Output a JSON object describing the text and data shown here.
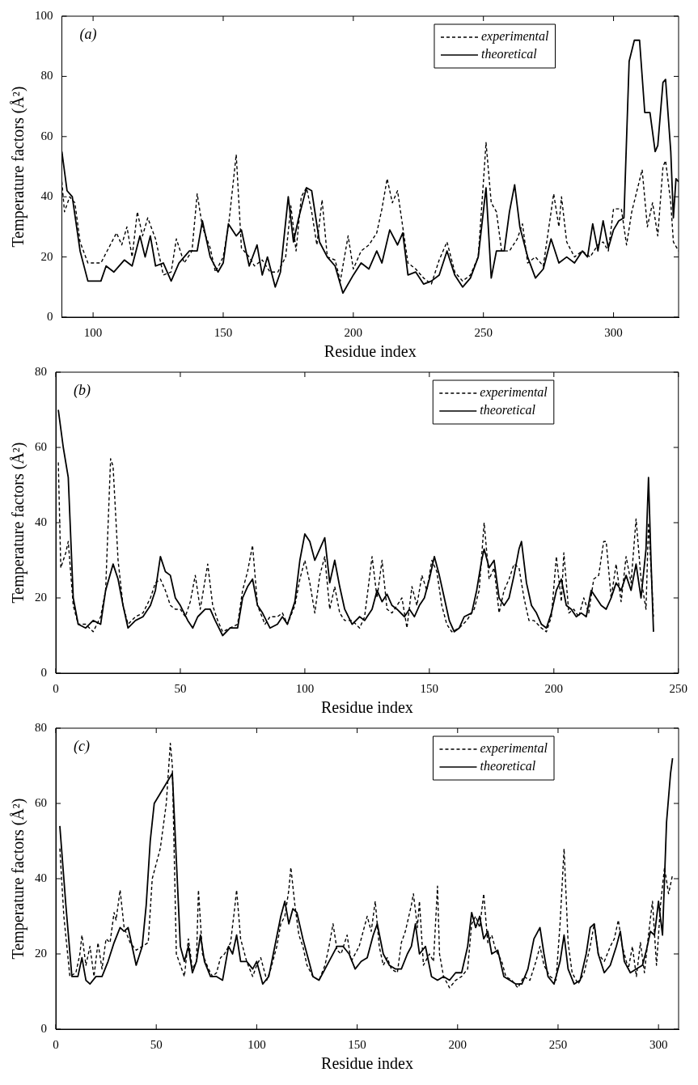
{
  "chart_data": [
    {
      "type": "line",
      "annotations": [
        "(a)"
      ],
      "xlabel": "Residue index",
      "ylabel": "Temperature factors (Å²)",
      "xlim": [
        88,
        325
      ],
      "xticks": [
        100,
        150,
        200,
        250,
        300
      ],
      "ylim": [
        0,
        100
      ],
      "yticks": [
        0,
        20,
        40,
        60,
        80,
        100
      ],
      "grid": false,
      "legend": "top right",
      "marker": "none",
      "series": [
        {
          "name": "experimental",
          "color": "#000000",
          "line_style": "dashed",
          "x": [
            88,
            89,
            91,
            93,
            95,
            98,
            103,
            106,
            109,
            111,
            113,
            115,
            117,
            119,
            121,
            124,
            127,
            130,
            132,
            135,
            138,
            140,
            142,
            145,
            147,
            150,
            152,
            155,
            157,
            160,
            162,
            165,
            168,
            171,
            174,
            176,
            178,
            180,
            182,
            184,
            186,
            188,
            190,
            193,
            195,
            198,
            200,
            203,
            206,
            209,
            211,
            213,
            215,
            217,
            219,
            221,
            224,
            227,
            230,
            233,
            236,
            239,
            242,
            245,
            248,
            250,
            251,
            253,
            255,
            257,
            260,
            263,
            265,
            267,
            270,
            273,
            276,
            277,
            279,
            280,
            282,
            285,
            288,
            291,
            294,
            296,
            298,
            300,
            303,
            305,
            307,
            309,
            311,
            313,
            315,
            317,
            319,
            320,
            322,
            323,
            325
          ],
          "values": [
            45,
            35,
            40,
            38,
            25,
            18,
            18,
            23,
            28,
            24,
            30,
            20,
            35,
            27,
            33,
            26,
            14,
            15,
            26,
            18,
            22,
            41,
            30,
            23,
            15,
            20,
            30,
            54,
            23,
            20,
            17,
            19,
            15,
            15,
            20,
            37,
            22,
            40,
            43,
            35,
            24,
            39,
            20,
            19,
            12,
            27,
            16,
            22,
            24,
            28,
            36,
            46,
            38,
            42,
            30,
            18,
            16,
            13,
            11,
            19,
            25,
            15,
            12,
            14,
            20,
            45,
            58,
            38,
            35,
            22,
            22,
            26,
            31,
            18,
            20,
            17,
            35,
            41,
            30,
            40,
            25,
            20,
            22,
            20,
            24,
            25,
            22,
            36,
            36,
            24,
            35,
            42,
            49,
            30,
            38,
            27,
            50,
            52,
            38,
            25,
            22
          ]
        },
        {
          "name": "theoretical",
          "color": "#000000",
          "line_style": "solid",
          "x": [
            88,
            90,
            92,
            95,
            98,
            103,
            105,
            108,
            112,
            115,
            118,
            120,
            122,
            124,
            127,
            130,
            133,
            137,
            140,
            142,
            145,
            148,
            150,
            152,
            155,
            157,
            160,
            163,
            165,
            167,
            170,
            172,
            175,
            177,
            179,
            182,
            184,
            187,
            190,
            193,
            196,
            200,
            203,
            206,
            209,
            211,
            214,
            217,
            219,
            221,
            224,
            227,
            230,
            233,
            236,
            239,
            242,
            245,
            248,
            251,
            253,
            255,
            258,
            260,
            262,
            264,
            267,
            270,
            273,
            276,
            279,
            282,
            285,
            288,
            290,
            292,
            294,
            296,
            298,
            300,
            302,
            304,
            306,
            308,
            310,
            312,
            314,
            316,
            317,
            319,
            320,
            322,
            323,
            324,
            325
          ],
          "values": [
            55,
            42,
            40,
            22,
            12,
            12,
            17,
            15,
            19,
            17,
            27,
            20,
            27,
            17,
            18,
            12,
            18,
            22,
            22,
            32,
            20,
            15,
            18,
            31,
            27,
            29,
            17,
            24,
            14,
            20,
            10,
            15,
            40,
            25,
            33,
            43,
            42,
            25,
            20,
            17,
            8,
            14,
            18,
            16,
            22,
            18,
            29,
            24,
            28,
            14,
            15,
            11,
            12,
            14,
            22,
            14,
            10,
            13,
            20,
            43,
            13,
            22,
            22,
            35,
            44,
            30,
            20,
            13,
            16,
            26,
            18,
            20,
            18,
            22,
            20,
            31,
            22,
            32,
            23,
            29,
            32,
            33,
            85,
            92,
            92,
            68,
            68,
            55,
            57,
            78,
            79,
            55,
            33,
            46,
            45
          ]
        }
      ]
    },
    {
      "type": "line",
      "annotations": [
        "(b)"
      ],
      "xlabel": "Residue index",
      "ylabel": "Temperature factors (Å²)",
      "xlim": [
        0,
        250
      ],
      "xticks": [
        0,
        50,
        100,
        150,
        200,
        250
      ],
      "ylim": [
        0,
        80
      ],
      "yticks": [
        0,
        20,
        40,
        60,
        80
      ],
      "grid": false,
      "legend": "top right",
      "marker": "none",
      "series": [
        {
          "name": "experimental",
          "color": "#000000",
          "line_style": "dashed",
          "x": [
            1,
            2,
            4,
            5,
            7,
            9,
            12,
            15,
            18,
            20,
            22,
            23,
            25,
            27,
            29,
            32,
            35,
            38,
            40,
            42,
            44,
            46,
            48,
            50,
            52,
            54,
            56,
            58,
            61,
            63,
            65,
            67,
            70,
            73,
            75,
            77,
            79,
            81,
            84,
            86,
            89,
            91,
            93,
            96,
            98,
            100,
            102,
            104,
            106,
            108,
            110,
            112,
            114,
            116,
            119,
            122,
            124,
            127,
            129,
            131,
            133,
            135,
            137,
            139,
            141,
            143,
            145,
            147,
            149,
            151,
            153,
            155,
            157,
            159,
            162,
            165,
            168,
            170,
            172,
            174,
            176,
            178,
            180,
            182,
            184,
            186,
            188,
            190,
            192,
            195,
            197,
            199,
            201,
            203,
            204,
            206,
            208,
            210,
            212,
            214,
            216,
            218,
            220,
            221,
            223,
            225,
            227,
            229,
            231,
            233,
            235,
            237,
            238,
            239,
            240
          ],
          "values": [
            56,
            28,
            32,
            35,
            18,
            13,
            13,
            11,
            15,
            22,
            57,
            55,
            30,
            18,
            13,
            15,
            16,
            20,
            24,
            25,
            22,
            18,
            17,
            17,
            15,
            19,
            26,
            17,
            29,
            18,
            14,
            11,
            12,
            13,
            22,
            27,
            34,
            18,
            13,
            15,
            15,
            16,
            13,
            18,
            25,
            30,
            24,
            16,
            26,
            31,
            17,
            23,
            16,
            14,
            14,
            12,
            15,
            31,
            20,
            30,
            17,
            16,
            18,
            20,
            12,
            23,
            18,
            26,
            22,
            30,
            27,
            18,
            13,
            11,
            12,
            14,
            17,
            22,
            40,
            25,
            28,
            16,
            22,
            25,
            29,
            28,
            20,
            14,
            14,
            12,
            11,
            15,
            31,
            19,
            32,
            16,
            17,
            15,
            20,
            16,
            25,
            26,
            35,
            35,
            20,
            29,
            19,
            31,
            24,
            41,
            25,
            17,
            40,
            28,
            15
          ]
        },
        {
          "name": "theoretical",
          "color": "#000000",
          "line_style": "solid",
          "x": [
            1,
            3,
            5,
            7,
            9,
            12,
            15,
            18,
            20,
            23,
            25,
            27,
            29,
            32,
            35,
            38,
            40,
            42,
            44,
            46,
            48,
            50,
            53,
            55,
            57,
            60,
            62,
            64,
            67,
            70,
            73,
            75,
            77,
            79,
            81,
            83,
            86,
            89,
            91,
            93,
            96,
            98,
            100,
            102,
            104,
            106,
            108,
            110,
            112,
            114,
            116,
            119,
            122,
            124,
            127,
            129,
            131,
            133,
            135,
            137,
            140,
            142,
            144,
            146,
            148,
            150,
            152,
            154,
            156,
            158,
            160,
            162,
            164,
            167,
            169,
            171,
            172,
            174,
            176,
            178,
            180,
            182,
            184,
            186,
            187,
            189,
            191,
            193,
            195,
            197,
            199,
            201,
            203,
            205,
            207,
            209,
            211,
            213,
            215,
            217,
            219,
            221,
            223,
            225,
            227,
            229,
            231,
            233,
            235,
            237,
            238,
            239,
            240
          ],
          "values": [
            70,
            60,
            52,
            20,
            13,
            12,
            14,
            13,
            22,
            29,
            25,
            18,
            12,
            14,
            15,
            18,
            22,
            31,
            27,
            26,
            20,
            18,
            14,
            12,
            15,
            17,
            17,
            14,
            10,
            12,
            12,
            20,
            23,
            25,
            18,
            16,
            12,
            13,
            15,
            13,
            19,
            30,
            37,
            35,
            30,
            33,
            36,
            24,
            30,
            23,
            17,
            13,
            15,
            14,
            17,
            22,
            19,
            21,
            18,
            17,
            15,
            17,
            15,
            18,
            20,
            25,
            31,
            26,
            20,
            14,
            11,
            12,
            15,
            16,
            22,
            30,
            33,
            28,
            30,
            20,
            18,
            20,
            26,
            33,
            35,
            24,
            18,
            16,
            13,
            12,
            16,
            22,
            25,
            18,
            17,
            15,
            16,
            15,
            22,
            20,
            18,
            17,
            20,
            24,
            22,
            26,
            22,
            29,
            20,
            33,
            52,
            30,
            11
          ]
        }
      ]
    },
    {
      "type": "line",
      "annotations": [
        "(c)"
      ],
      "xlabel": "Residue index",
      "ylabel": "Temperature factors (Å²)",
      "xlim": [
        0,
        310
      ],
      "xticks": [
        0,
        50,
        100,
        150,
        200,
        250,
        300
      ],
      "ylim": [
        0,
        80
      ],
      "yticks": [
        0,
        20,
        40,
        60,
        80
      ],
      "grid": false,
      "legend": "top right",
      "marker": "none",
      "series": [
        {
          "name": "experimental",
          "color": "#000000",
          "line_style": "dashed",
          "x": [
            2,
            4,
            7,
            10,
            12,
            13,
            15,
            17,
            19,
            21,
            23,
            25,
            27,
            29,
            30,
            32,
            34,
            37,
            40,
            43,
            46,
            48,
            52,
            55,
            57,
            58,
            60,
            62,
            64,
            66,
            68,
            70,
            71,
            73,
            76,
            78,
            80,
            82,
            84,
            87,
            89,
            90,
            92,
            95,
            98,
            100,
            102,
            105,
            107,
            110,
            112,
            114,
            116,
            117,
            119,
            121,
            123,
            125,
            128,
            131,
            134,
            136,
            138,
            140,
            142,
            145,
            147,
            149,
            151,
            153,
            155,
            157,
            159,
            161,
            163,
            165,
            167,
            170,
            172,
            174,
            177,
            178,
            180,
            181,
            183,
            186,
            188,
            190,
            191,
            193,
            196,
            199,
            202,
            205,
            207,
            209,
            211,
            213,
            215,
            217,
            219,
            222,
            224,
            227,
            230,
            233,
            236,
            239,
            241,
            243,
            246,
            249,
            251,
            253,
            255,
            257,
            260,
            263,
            266,
            268,
            270,
            273,
            276,
            278,
            280,
            282,
            285,
            287,
            289,
            291,
            293,
            295,
            297,
            299,
            301,
            303,
            305,
            307
          ],
          "values": [
            48,
            30,
            14,
            15,
            20,
            25,
            17,
            22,
            14,
            23,
            16,
            24,
            23,
            31,
            29,
            37,
            27,
            23,
            21,
            22,
            23,
            40,
            48,
            60,
            76,
            70,
            20,
            17,
            14,
            24,
            16,
            18,
            37,
            20,
            16,
            14,
            15,
            19,
            20,
            23,
            32,
            37,
            24,
            18,
            14,
            17,
            19,
            13,
            16,
            22,
            28,
            30,
            37,
            43,
            33,
            25,
            22,
            17,
            14,
            13,
            17,
            22,
            28,
            21,
            20,
            25,
            18,
            20,
            22,
            26,
            30,
            26,
            34,
            22,
            17,
            19,
            16,
            15,
            23,
            26,
            33,
            36,
            27,
            34,
            17,
            20,
            18,
            38,
            20,
            14,
            11,
            13,
            14,
            16,
            28,
            30,
            27,
            36,
            23,
            25,
            21,
            18,
            14,
            13,
            11,
            14,
            13,
            18,
            22,
            17,
            14,
            13,
            28,
            48,
            23,
            15,
            12,
            15,
            22,
            28,
            20,
            18,
            22,
            24,
            29,
            22,
            16,
            22,
            14,
            23,
            15,
            25,
            34,
            17,
            33,
            43,
            36,
            41
          ]
        },
        {
          "name": "theoretical",
          "color": "#000000",
          "line_style": "solid",
          "x": [
            2,
            5,
            8,
            11,
            13,
            15,
            17,
            20,
            23,
            26,
            29,
            32,
            34,
            36,
            40,
            43,
            45,
            47,
            49,
            58,
            60,
            62,
            64,
            66,
            68,
            70,
            72,
            74,
            77,
            80,
            83,
            86,
            88,
            90,
            92,
            95,
            98,
            100,
            103,
            106,
            109,
            112,
            114,
            116,
            118,
            120,
            123,
            126,
            128,
            131,
            134,
            137,
            140,
            143,
            146,
            149,
            152,
            155,
            158,
            160,
            163,
            166,
            169,
            172,
            175,
            177,
            179,
            181,
            184,
            187,
            190,
            193,
            196,
            199,
            202,
            205,
            207,
            209,
            211,
            213,
            215,
            217,
            220,
            223,
            226,
            229,
            232,
            235,
            238,
            241,
            243,
            245,
            248,
            251,
            253,
            255,
            258,
            261,
            264,
            266,
            268,
            270,
            273,
            276,
            279,
            281,
            283,
            286,
            289,
            292,
            294,
            296,
            298,
            300,
            302,
            304,
            306,
            307
          ],
          "values": [
            54,
            33,
            14,
            14,
            19,
            13,
            12,
            14,
            14,
            18,
            23,
            27,
            26,
            27,
            17,
            22,
            33,
            50,
            60,
            68,
            45,
            22,
            18,
            22,
            15,
            18,
            25,
            18,
            14,
            14,
            13,
            22,
            20,
            25,
            18,
            18,
            16,
            18,
            12,
            14,
            22,
            30,
            34,
            28,
            32,
            31,
            24,
            18,
            14,
            13,
            16,
            19,
            22,
            22,
            20,
            16,
            18,
            19,
            25,
            28,
            20,
            17,
            16,
            16,
            20,
            22,
            28,
            20,
            22,
            14,
            13,
            14,
            13,
            15,
            15,
            22,
            31,
            27,
            30,
            24,
            26,
            20,
            21,
            14,
            13,
            12,
            12,
            16,
            24,
            27,
            20,
            14,
            12,
            18,
            25,
            16,
            12,
            13,
            20,
            27,
            28,
            20,
            15,
            17,
            22,
            26,
            18,
            15,
            16,
            17,
            21,
            26,
            25,
            34,
            25,
            55,
            68,
            72
          ]
        }
      ]
    }
  ]
}
